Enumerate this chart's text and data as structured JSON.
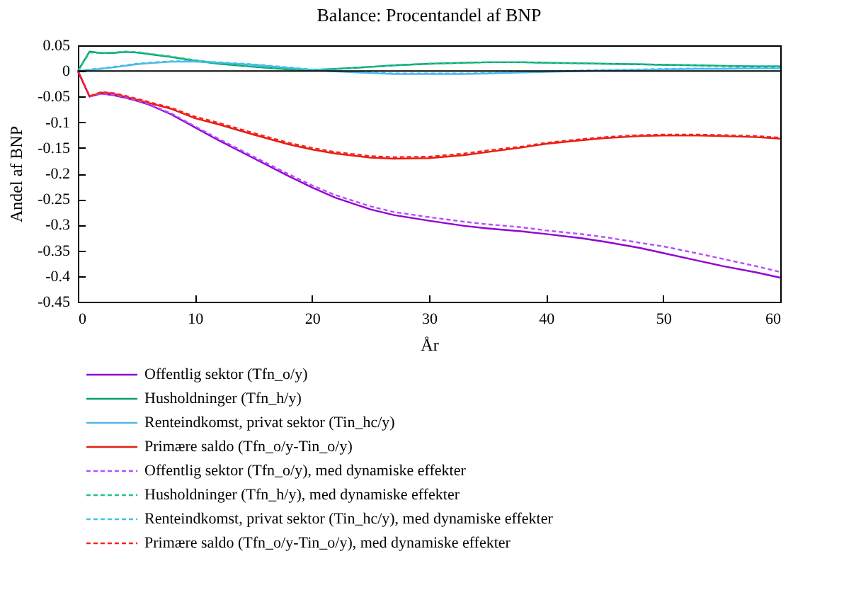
{
  "chart_data": {
    "type": "line",
    "title": "Balance: Procentandel af BNP",
    "xlabel": "År",
    "ylabel": "Andel af BNP",
    "x": [
      0,
      1,
      2,
      3,
      4,
      5,
      6,
      8,
      10,
      12,
      15,
      18,
      20,
      22,
      25,
      27,
      30,
      33,
      35,
      38,
      40,
      43,
      45,
      48,
      50,
      53,
      55,
      58,
      60
    ],
    "series": [
      {
        "name": "Offentlig sektor (Tfn_o/y)",
        "color": "#9400d3",
        "line_style": "solid",
        "values": [
          0,
          -0.05,
          -0.044,
          -0.047,
          -0.052,
          -0.058,
          -0.065,
          -0.085,
          -0.11,
          -0.135,
          -0.17,
          -0.205,
          -0.227,
          -0.247,
          -0.27,
          -0.281,
          -0.292,
          -0.302,
          -0.307,
          -0.313,
          -0.318,
          -0.326,
          -0.333,
          -0.345,
          -0.355,
          -0.37,
          -0.38,
          -0.393,
          -0.403
        ]
      },
      {
        "name": "Husholdninger (Tfn_h/y)",
        "color": "#009e73",
        "line_style": "solid",
        "values": [
          0,
          0.038,
          0.035,
          0.035,
          0.037,
          0.036,
          0.033,
          0.027,
          0.02,
          0.014,
          0.008,
          0.003,
          0.002,
          0.004,
          0.008,
          0.011,
          0.014,
          0.016,
          0.017,
          0.017,
          0.016,
          0.015,
          0.014,
          0.013,
          0.012,
          0.011,
          0.01,
          0.009,
          0.009
        ]
      },
      {
        "name": "Renteindkomst, privat sektor (Tin_hc/y)",
        "color": "#56b4e9",
        "line_style": "solid",
        "values": [
          0,
          0.002,
          0.004,
          0.007,
          0.01,
          0.013,
          0.015,
          0.018,
          0.018,
          0.016,
          0.012,
          0.006,
          0.002,
          -0.001,
          -0.004,
          -0.006,
          -0.006,
          -0.006,
          -0.005,
          -0.003,
          -0.002,
          0,
          0.001,
          0.002,
          0.003,
          0.004,
          0.004,
          0.005,
          0.005
        ]
      },
      {
        "name": "Primære saldo (Tfn_o/y-Tin_o/y)",
        "color": "#e51e10",
        "line_style": "solid",
        "values": [
          0,
          -0.05,
          -0.042,
          -0.044,
          -0.05,
          -0.056,
          -0.062,
          -0.074,
          -0.092,
          -0.104,
          -0.124,
          -0.143,
          -0.153,
          -0.161,
          -0.169,
          -0.171,
          -0.17,
          -0.164,
          -0.158,
          -0.149,
          -0.142,
          -0.135,
          -0.131,
          -0.127,
          -0.126,
          -0.126,
          -0.127,
          -0.129,
          -0.132
        ]
      },
      {
        "name": "Offentlig sektor (Tfn_o/y), med dynamiske effekter",
        "color": "#b050ff",
        "line_style": "dashed",
        "values": [
          0,
          -0.05,
          -0.044,
          -0.046,
          -0.051,
          -0.057,
          -0.064,
          -0.083,
          -0.108,
          -0.132,
          -0.167,
          -0.201,
          -0.223,
          -0.242,
          -0.264,
          -0.275,
          -0.285,
          -0.294,
          -0.299,
          -0.305,
          -0.311,
          -0.318,
          -0.324,
          -0.335,
          -0.342,
          -0.356,
          -0.366,
          -0.381,
          -0.392
        ]
      },
      {
        "name": "Husholdninger (Tfn_h/y), med dynamiske effekter",
        "color": "#20c090",
        "line_style": "dashed",
        "values": [
          0,
          0.036,
          0.035,
          0.036,
          0.038,
          0.037,
          0.034,
          0.028,
          0.021,
          0.015,
          0.009,
          0.004,
          0.002,
          0.004,
          0.008,
          0.011,
          0.014,
          0.016,
          0.017,
          0.017,
          0.016,
          0.015,
          0.014,
          0.013,
          0.012,
          0.011,
          0.01,
          0.009,
          0.009
        ]
      },
      {
        "name": "Renteindkomst, privat sektor (Tin_hc/y), med dynamiske effekter",
        "color": "#40c0f0",
        "line_style": "dashed",
        "values": [
          0,
          0.003,
          0.005,
          0.008,
          0.011,
          0.014,
          0.016,
          0.019,
          0.019,
          0.017,
          0.013,
          0.007,
          0.003,
          0,
          -0.003,
          -0.005,
          -0.005,
          -0.005,
          -0.004,
          -0.002,
          -0.001,
          0.001,
          0.002,
          0.003,
          0.004,
          0.005,
          0.005,
          0.006,
          0.006
        ]
      },
      {
        "name": "Primære saldo (Tfn_o/y-Tin_o/y), med dynamiske effekter",
        "color": "#ff2020",
        "line_style": "dashed",
        "values": [
          0,
          -0.049,
          -0.041,
          -0.043,
          -0.048,
          -0.054,
          -0.06,
          -0.072,
          -0.089,
          -0.101,
          -0.121,
          -0.14,
          -0.15,
          -0.158,
          -0.166,
          -0.168,
          -0.167,
          -0.161,
          -0.155,
          -0.147,
          -0.14,
          -0.133,
          -0.129,
          -0.125,
          -0.124,
          -0.124,
          -0.125,
          -0.127,
          -0.13
        ]
      }
    ],
    "xlim": [
      0,
      60
    ],
    "xticks": [
      0,
      10,
      20,
      30,
      40,
      50,
      60
    ],
    "ylim": [
      -0.45,
      0.05
    ],
    "yticks": [
      0.05,
      0,
      -0.05,
      -0.1,
      -0.15,
      -0.2,
      -0.25,
      -0.3,
      -0.35,
      -0.4,
      -0.45
    ],
    "ref_lines": [
      {
        "axis": "y",
        "value": 0,
        "color": "#000000"
      }
    ],
    "grid": false,
    "legend": "bottom"
  }
}
